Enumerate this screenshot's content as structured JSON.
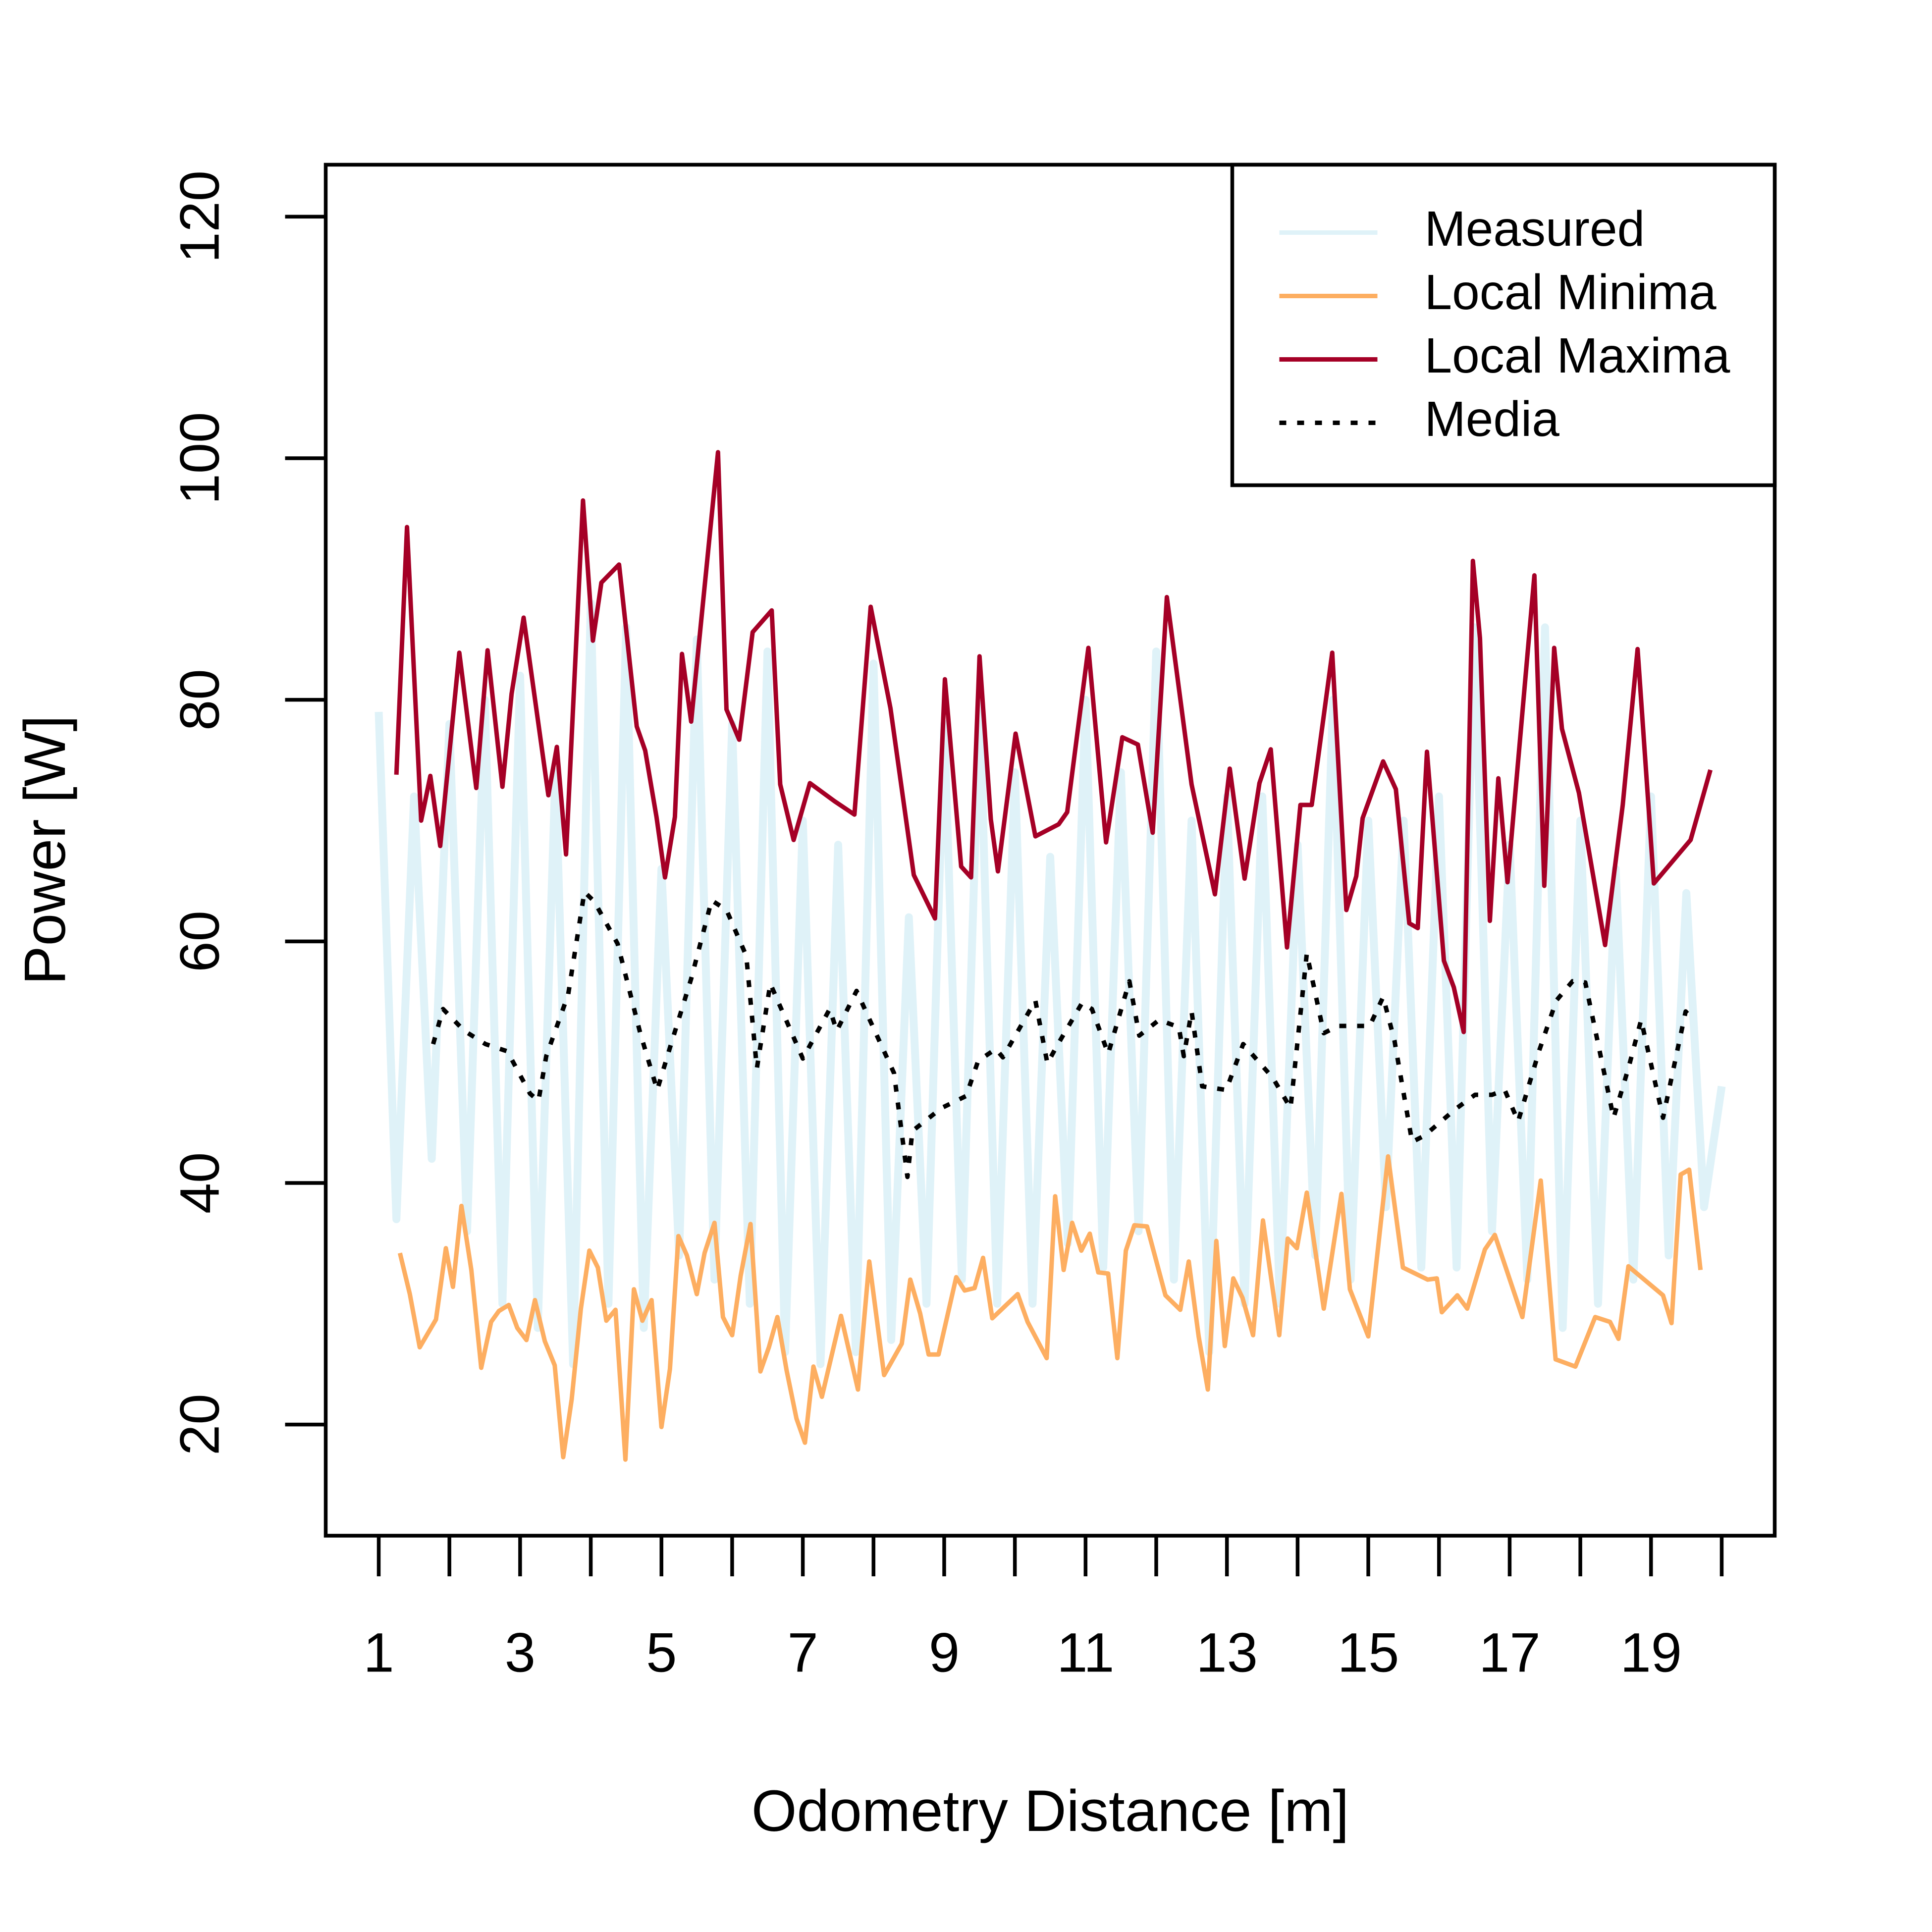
{
  "chart_data": {
    "type": "line",
    "xlabel": "Odometry Distance [m]",
    "ylabel": "Power [W]",
    "xlim": [
      0.25,
      20.75
    ],
    "ylim": [
      10.8,
      124.3
    ],
    "xticks": [
      1,
      3,
      5,
      7,
      9,
      11,
      13,
      15,
      17,
      19
    ],
    "xminor_ticks": [
      2,
      4,
      6,
      8,
      10,
      12,
      14,
      16,
      18,
      20
    ],
    "yticks": [
      20,
      40,
      60,
      80,
      100,
      120
    ],
    "legend": "top-right",
    "series": [
      {
        "name": "Measured",
        "color": "#dff2f8",
        "style": "solid",
        "x": [
          1,
          1.25,
          1.5,
          1.75,
          2,
          2.25,
          2.5,
          2.75,
          3,
          3.25,
          3.5,
          3.75,
          4,
          4.25,
          4.5,
          4.75,
          5,
          5.25,
          5.5,
          5.75,
          6,
          6.25,
          6.5,
          6.75,
          7,
          7.25,
          7.5,
          7.75,
          8,
          8.25,
          8.5,
          8.75,
          9,
          9.25,
          9.5,
          9.75,
          10,
          10.25,
          10.5,
          10.75,
          11,
          11.25,
          11.5,
          11.75,
          12,
          12.25,
          12.5,
          12.75,
          13,
          13.25,
          13.5,
          13.75,
          14,
          14.25,
          14.5,
          14.75,
          15,
          15.25,
          15.5,
          15.75,
          16,
          16.25,
          16.5,
          16.75,
          17,
          17.25,
          17.5,
          17.75,
          18,
          18.25,
          18.5,
          18.75,
          19,
          19.25,
          19.5,
          19.75,
          20
        ],
        "values": [
          79,
          37,
          72,
          42,
          78,
          36,
          80,
          30,
          82,
          28,
          74,
          25,
          88,
          30,
          86,
          28,
          66,
          34,
          85,
          32,
          78,
          30,
          84,
          26,
          70,
          25,
          68,
          26,
          83,
          27,
          62,
          30,
          78,
          32,
          80,
          30,
          74,
          30,
          67,
          35,
          80,
          33,
          74,
          36,
          84,
          32,
          70,
          26,
          72,
          30,
          72,
          30,
          68,
          34,
          80,
          32,
          70,
          38,
          70,
          33,
          72,
          33,
          86,
          36,
          68,
          32,
          86,
          28,
          70,
          30,
          66,
          32,
          72,
          34,
          64,
          38,
          48
        ]
      },
      {
        "name": "Local Minima",
        "color": "#fdae61",
        "style": "solid",
        "x": [
          1.3,
          1.44,
          1.58,
          1.81,
          1.95,
          2.05,
          2.17,
          2.31,
          2.45,
          2.59,
          2.7,
          2.84,
          2.96,
          3.09,
          3.21,
          3.35,
          3.49,
          3.61,
          3.73,
          3.86,
          3.98,
          4.1,
          4.22,
          4.35,
          4.49,
          4.61,
          4.73,
          4.86,
          5,
          5.12,
          5.24,
          5.36,
          5.5,
          5.61,
          5.75,
          5.87,
          6,
          6.12,
          6.26,
          6.4,
          6.52,
          6.64,
          6.77,
          6.91,
          7.03,
          7.15,
          7.27,
          7.54,
          7.78,
          7.94,
          8.15,
          8.4,
          8.52,
          8.66,
          8.78,
          8.92,
          9.17,
          9.29,
          9.43,
          9.55,
          9.68,
          10.04,
          10.18,
          10.45,
          10.57,
          10.69,
          10.81,
          10.94,
          11.06,
          11.18,
          11.32,
          11.45,
          11.57,
          11.69,
          11.87,
          12.13,
          12.34,
          12.46,
          12.6,
          12.73,
          12.85,
          12.97,
          13.09,
          13.22,
          13.37,
          13.51,
          13.74,
          13.86,
          13.99,
          14.13,
          14.37,
          14.62,
          14.74,
          15,
          15.28,
          15.49,
          15.84,
          15.97,
          16.04,
          16.26,
          16.4,
          16.65,
          16.79,
          17.18,
          17.44,
          17.65,
          17.93,
          18.21,
          18.42,
          18.54,
          18.68,
          19.17,
          19.29,
          19.42,
          19.54,
          19.7
        ],
        "values": [
          34.2,
          30.8,
          26.4,
          28.7,
          34.6,
          31.4,
          38.1,
          32.8,
          24.7,
          28.5,
          29.4,
          29.9,
          28,
          27,
          30.3,
          26.9,
          24.9,
          17.3,
          22.1,
          29.6,
          34.4,
          33,
          28.6,
          29.5,
          17.1,
          31.2,
          28.6,
          30.3,
          19.8,
          24.6,
          35.6,
          34,
          30.8,
          34.2,
          36.7,
          28.9,
          27.4,
          32.3,
          36.6,
          24.4,
          26.4,
          28.9,
          24.5,
          20.5,
          18.5,
          24.8,
          22.3,
          29,
          22.9,
          33.5,
          24.1,
          26.7,
          32,
          29.2,
          25.8,
          25.8,
          32.2,
          31.1,
          31.3,
          33.8,
          28.8,
          30.8,
          28.5,
          25.5,
          38.9,
          32.8,
          36.7,
          34.4,
          35.8,
          32.6,
          32.5,
          25.5,
          34.4,
          36.5,
          36.4,
          30.7,
          29.5,
          33.5,
          27.3,
          22.9,
          35.2,
          26.5,
          32.1,
          30.5,
          27.4,
          36.9,
          27.4,
          35.4,
          34.6,
          39.2,
          29.6,
          39.1,
          31.2,
          27.3,
          42.2,
          33,
          32,
          32.1,
          29.3,
          30.7,
          29.6,
          34.5,
          35.7,
          28.9,
          40.2,
          25.4,
          24.8,
          28.9,
          28.5,
          27.1,
          33.1,
          30.7,
          28.4,
          40.7,
          41.1,
          32.8
        ]
      },
      {
        "name": "Local Maxima",
        "color": "#a50026",
        "style": "solid",
        "x": [
          1.25,
          1.4,
          1.6,
          1.73,
          1.87,
          2.14,
          2.38,
          2.54,
          2.75,
          2.88,
          3.05,
          3.4,
          3.52,
          3.65,
          3.89,
          4.03,
          4.15,
          4.4,
          4.65,
          4.77,
          4.93,
          5.05,
          5.19,
          5.29,
          5.42,
          5.8,
          5.92,
          6.1,
          6.29,
          6.56,
          6.68,
          6.87,
          7.1,
          7.45,
          7.73,
          7.96,
          8.24,
          8.57,
          8.87,
          9.01,
          9.24,
          9.38,
          9.5,
          9.66,
          9.76,
          10.01,
          10.29,
          10.62,
          10.74,
          11.04,
          11.29,
          11.52,
          11.74,
          11.95,
          12.15,
          12.5,
          12.83,
          13.04,
          13.25,
          13.46,
          13.62,
          13.85,
          14.04,
          14.2,
          14.49,
          14.69,
          14.83,
          14.92,
          15.21,
          15.39,
          15.58,
          15.7,
          15.83,
          16.07,
          16.21,
          16.35,
          16.48,
          16.58,
          16.72,
          16.84,
          16.97,
          17.35,
          17.49,
          17.63,
          17.74,
          17.98,
          18.35,
          18.6,
          18.81,
          19.04,
          19.56,
          19.84
        ],
        "values": [
          73.8,
          94.3,
          70,
          73.7,
          67.9,
          83.9,
          72.7,
          84.1,
          72.8,
          80.5,
          86.8,
          72.1,
          76.1,
          67.2,
          96.5,
          84.9,
          89.7,
          91.2,
          77.8,
          75.8,
          70.3,
          65.3,
          70.3,
          83.8,
          78.2,
          100.5,
          79.2,
          76.7,
          85.6,
          87.4,
          73,
          68.4,
          73.1,
          71.6,
          70.5,
          87.7,
          79.3,
          65.5,
          61.9,
          81.7,
          66.2,
          65.3,
          83.6,
          70.1,
          65.8,
          77.2,
          68.7,
          69.7,
          70.7,
          84.3,
          68.2,
          76.9,
          76.3,
          69,
          88.5,
          73,
          63.9,
          74.3,
          65.2,
          73.1,
          75.9,
          59.5,
          71.3,
          71.3,
          83.9,
          62.6,
          65.4,
          70.2,
          74.9,
          72.6,
          61.5,
          61.1,
          75.7,
          58.4,
          56.2,
          52.5,
          91.5,
          85.1,
          61.7,
          73.5,
          64.9,
          90.3,
          64.6,
          84.3,
          77.6,
          72.3,
          59.7,
          71.3,
          84.2,
          64.8,
          68.4,
          74.2
        ]
      },
      {
        "name": "Media",
        "color": "#000000",
        "style": "dotted",
        "x": [
          1.77,
          1.91,
          2.21,
          2.51,
          2.82,
          3.14,
          3.26,
          3.37,
          3.68,
          3.91,
          4.05,
          4.38,
          4.7,
          4.94,
          5.12,
          5.42,
          5.71,
          5.92,
          6.2,
          6.35,
          6.54,
          7,
          7.38,
          7.48,
          7.76,
          8.29,
          8.48,
          8.55,
          8.96,
          9.31,
          9.48,
          9.73,
          9.83,
          10.29,
          10.46,
          10.59,
          10.95,
          11.09,
          11.32,
          11.62,
          11.76,
          12.04,
          12.32,
          12.39,
          12.5,
          12.65,
          12.99,
          13.23,
          13.65,
          13.9,
          14.13,
          14.37,
          14.57,
          15.02,
          15.21,
          15.37,
          15.62,
          15.79,
          16.23,
          16.51,
          16.75,
          16.93,
          17.12,
          17.42,
          17.66,
          17.89,
          18.07,
          18.47,
          18.68,
          18.86,
          19.17,
          19.49,
          19.58
        ],
        "values": [
          51.5,
          54.4,
          52.6,
          51.5,
          50.9,
          47.4,
          46.8,
          50.5,
          55.6,
          64.1,
          63.3,
          59.8,
          52.4,
          47.7,
          51.2,
          56.9,
          63.4,
          62.6,
          58.8,
          49.5,
          56.5,
          50.3,
          54.4,
          52.6,
          55.9,
          49.1,
          40.5,
          44.3,
          46.2,
          47.2,
          50.1,
          51.1,
          50.4,
          55.1,
          49.9,
          51.3,
          54.9,
          54.4,
          50.7,
          56.7,
          52.2,
          53.5,
          52.9,
          50.5,
          54.2,
          48,
          47.7,
          51.5,
          48.7,
          46.2,
          59,
          52.4,
          53,
          53,
          55.4,
          51.8,
          43.4,
          43.9,
          46.1,
          47.3,
          47.3,
          47.7,
          45.1,
          51,
          55.1,
          56.7,
          56.6,
          45.4,
          49.5,
          53.5,
          45.4,
          54.2,
          53.6
        ]
      }
    ]
  }
}
